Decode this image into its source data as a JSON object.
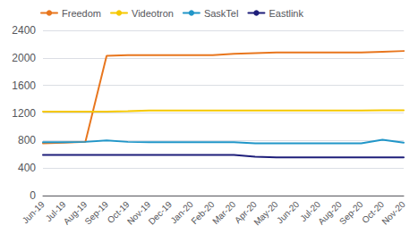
{
  "chart_data": {
    "type": "line",
    "categories": [
      "Jun-19",
      "Jul-19",
      "Aug-19",
      "Sep-19",
      "Oct-19",
      "Nov-19",
      "Dec-19",
      "Jan-20",
      "Feb-20",
      "Mar-20",
      "Apr-20",
      "May-20",
      "Jun-20",
      "Jul-20",
      "Aug-20",
      "Sep-20",
      "Oct-20",
      "Nov-20"
    ],
    "series": [
      {
        "name": "Freedom",
        "color": "#E8761E",
        "values": [
          760,
          770,
          780,
          2030,
          2040,
          2040,
          2040,
          2040,
          2040,
          2060,
          2070,
          2080,
          2080,
          2080,
          2080,
          2080,
          2090,
          2100
        ]
      },
      {
        "name": "Videotron",
        "color": "#F5C800",
        "values": [
          1220,
          1220,
          1220,
          1220,
          1225,
          1235,
          1235,
          1235,
          1235,
          1235,
          1235,
          1235,
          1235,
          1235,
          1235,
          1235,
          1240,
          1240
        ]
      },
      {
        "name": "SaskTel",
        "color": "#2196C8",
        "values": [
          775,
          775,
          780,
          800,
          780,
          775,
          775,
          775,
          775,
          775,
          760,
          760,
          760,
          760,
          760,
          760,
          810,
          770
        ]
      },
      {
        "name": "Eastlink",
        "color": "#1E1E7A",
        "values": [
          590,
          590,
          590,
          590,
          590,
          590,
          590,
          590,
          590,
          590,
          565,
          555,
          555,
          555,
          555,
          555,
          555,
          555
        ]
      }
    ],
    "ylim": [
      0,
      2400
    ],
    "yticks": [
      0,
      400,
      800,
      1200,
      1600,
      2000,
      2400
    ],
    "grid": true,
    "legend": "upper left"
  }
}
